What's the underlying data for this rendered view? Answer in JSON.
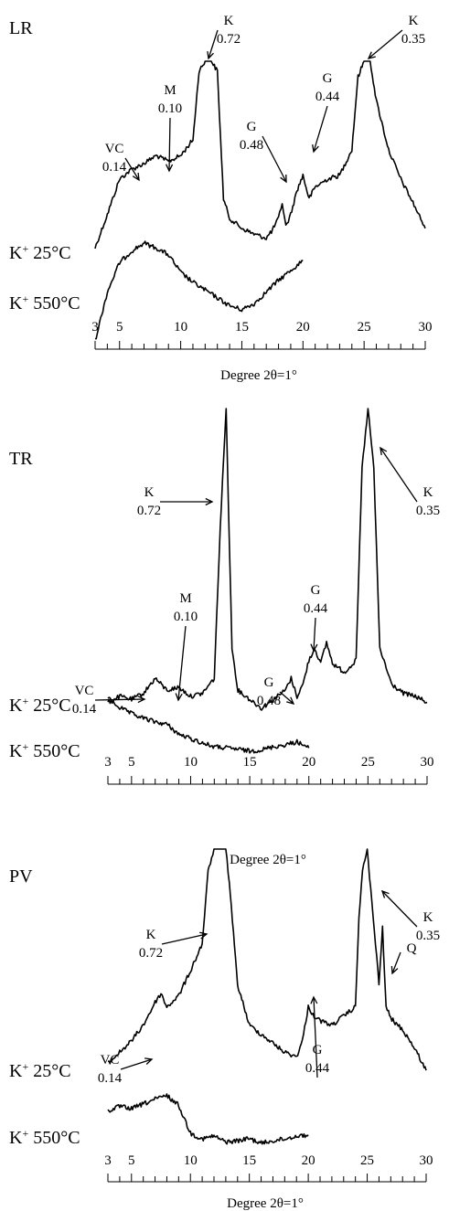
{
  "chart_data": [
    {
      "type": "line",
      "panel": "LR",
      "xlabel": "Degree 2θ=1°",
      "ticks": [
        3,
        5,
        10,
        15,
        20,
        25,
        30
      ],
      "xlim": [
        3,
        30
      ],
      "series": [
        {
          "name": "K⁺ 25°C",
          "x": [
            3,
            4,
            5,
            6,
            7,
            8,
            9,
            10,
            11,
            11.5,
            12,
            12.5,
            13,
            13.5,
            14,
            15,
            16,
            17,
            17.5,
            18,
            18.3,
            18.6,
            19,
            19.5,
            20,
            20.5,
            21,
            22,
            23,
            24,
            24.5,
            25,
            25.5,
            26,
            27,
            28,
            29,
            30
          ],
          "y": [
            0.05,
            0.22,
            0.4,
            0.45,
            0.48,
            0.52,
            0.49,
            0.52,
            0.6,
            0.95,
            1.0,
            1.0,
            0.95,
            0.3,
            0.2,
            0.15,
            0.12,
            0.1,
            0.14,
            0.2,
            0.28,
            0.16,
            0.22,
            0.34,
            0.42,
            0.3,
            0.36,
            0.4,
            0.42,
            0.55,
            0.92,
            1.0,
            1.0,
            0.8,
            0.55,
            0.4,
            0.28,
            0.15
          ]
        },
        {
          "name": "K⁺ 550°C",
          "x": [
            3,
            4,
            5,
            6,
            7,
            8,
            9,
            10,
            11,
            12,
            13,
            14,
            15,
            16,
            17,
            18,
            19,
            20
          ],
          "y": [
            0.0,
            0.5,
            0.8,
            0.92,
            1.0,
            0.95,
            0.88,
            0.7,
            0.6,
            0.52,
            0.44,
            0.36,
            0.32,
            0.38,
            0.5,
            0.62,
            0.72,
            0.82
          ]
        }
      ],
      "annotations": [
        {
          "label": "VC",
          "value": "0.14",
          "x": 7
        },
        {
          "label": "M",
          "value": "0.10",
          "x": 8.8
        },
        {
          "label": "K",
          "value": "0.72",
          "x": 12.3
        },
        {
          "label": "G",
          "value": "0.48",
          "x": 18.3
        },
        {
          "label": "G",
          "value": "0.44",
          "x": 20.5
        },
        {
          "label": "K",
          "value": "0.35",
          "x": 25.1
        }
      ]
    },
    {
      "type": "line",
      "panel": "TR",
      "xlabel": "Degree 2θ=1°",
      "ticks": [
        3,
        5,
        10,
        15,
        20,
        25,
        30
      ],
      "xlim": [
        3,
        30
      ],
      "series": [
        {
          "name": "K⁺ 25°C",
          "x": [
            3,
            4,
            5,
            6,
            7,
            8,
            9,
            10,
            11,
            12,
            12.5,
            13,
            13.5,
            14,
            15,
            16,
            17,
            18,
            18.5,
            19,
            19.5,
            20,
            20.5,
            21,
            21.5,
            22,
            23,
            24,
            24.5,
            25,
            25.5,
            26,
            27,
            28,
            29,
            30
          ],
          "y": [
            0.02,
            0.04,
            0.03,
            0.05,
            0.1,
            0.06,
            0.07,
            0.04,
            0.05,
            0.1,
            0.6,
            1.0,
            0.2,
            0.06,
            0.03,
            0.0,
            0.03,
            0.06,
            0.1,
            0.04,
            0.08,
            0.16,
            0.2,
            0.15,
            0.22,
            0.15,
            0.12,
            0.16,
            0.8,
            1.0,
            0.8,
            0.2,
            0.08,
            0.05,
            0.04,
            0.02
          ]
        },
        {
          "name": "K⁺ 550°C",
          "x": [
            3,
            4,
            5,
            6,
            7,
            8,
            9,
            10,
            11,
            12,
            13,
            14,
            15,
            16,
            17,
            18,
            19,
            20
          ],
          "y": [
            1.0,
            0.85,
            0.75,
            0.68,
            0.62,
            0.58,
            0.42,
            0.35,
            0.28,
            0.22,
            0.2,
            0.18,
            0.15,
            0.17,
            0.22,
            0.25,
            0.3,
            0.2
          ]
        }
      ],
      "annotations": [
        {
          "label": "VC",
          "value": "0.14",
          "x": 7
        },
        {
          "label": "M",
          "value": "0.10",
          "x": 9.5
        },
        {
          "label": "K",
          "value": "0.72",
          "x": 12.8
        },
        {
          "label": "G",
          "value": "0.48",
          "x": 18.6
        },
        {
          "label": "G",
          "value": "0.44",
          "x": 20.3
        },
        {
          "label": "K",
          "value": "0.35",
          "x": 25.1
        }
      ]
    },
    {
      "type": "line",
      "panel": "PV",
      "xlabel": "Degree 2θ=1°",
      "ticks": [
        3,
        5,
        10,
        15,
        20,
        25,
        30
      ],
      "xlim": [
        3,
        30
      ],
      "series": [
        {
          "name": "K⁺ 25°C",
          "x": [
            3,
            4,
            5,
            6,
            7,
            7.5,
            8,
            9,
            10,
            11,
            11.5,
            12,
            13,
            13.3,
            14,
            15,
            16,
            17,
            18,
            19,
            19.5,
            20,
            20.5,
            21,
            22,
            23,
            24,
            24.3,
            24.6,
            25,
            25.5,
            26,
            26.3,
            26.6,
            27,
            28,
            29,
            30
          ],
          "y": [
            0.05,
            0.1,
            0.15,
            0.22,
            0.32,
            0.36,
            0.3,
            0.35,
            0.46,
            0.58,
            0.9,
            1.0,
            1.0,
            0.85,
            0.4,
            0.22,
            0.18,
            0.14,
            0.1,
            0.08,
            0.15,
            0.3,
            0.26,
            0.24,
            0.22,
            0.26,
            0.3,
            0.7,
            0.9,
            1.0,
            0.7,
            0.4,
            0.65,
            0.3,
            0.25,
            0.2,
            0.12,
            0.02
          ]
        },
        {
          "name": "K⁺ 550°C",
          "x": [
            3,
            4,
            5,
            6,
            7,
            8,
            9,
            10,
            11,
            12,
            13,
            14,
            15,
            16,
            17,
            18,
            19,
            20
          ],
          "y": [
            0.62,
            0.7,
            0.66,
            0.74,
            0.82,
            0.88,
            0.72,
            0.25,
            0.15,
            0.2,
            0.1,
            0.12,
            0.16,
            0.08,
            0.12,
            0.15,
            0.2,
            0.22
          ]
        }
      ],
      "annotations": [
        {
          "label": "VC",
          "value": "0.14",
          "x": 7.2
        },
        {
          "label": "K",
          "value": "0.72",
          "x": 12.2
        },
        {
          "label": "G",
          "value": "0.44",
          "x": 20.2
        },
        {
          "label": "K",
          "value": "0.35",
          "x": 25.2
        },
        {
          "label": "Q",
          "value": "",
          "x": 26.6
        }
      ]
    }
  ]
}
